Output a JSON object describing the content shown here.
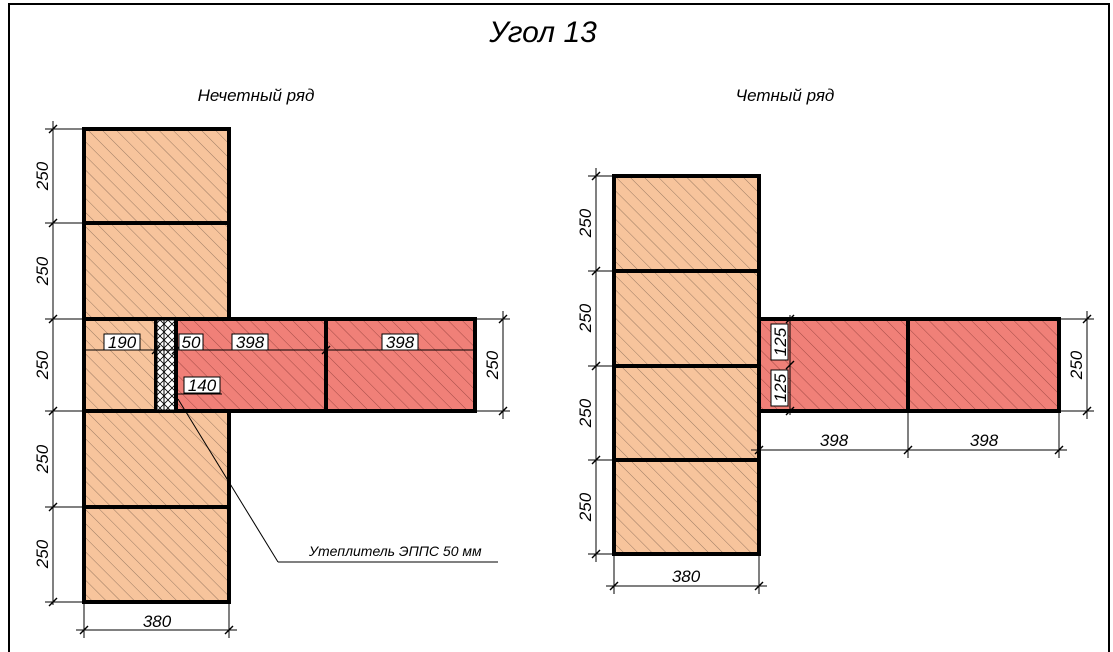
{
  "title": "Угол 13",
  "odd_row": {
    "label": "Нечетный ряд",
    "dims": {
      "h1": "250",
      "h2": "250",
      "h3": "250",
      "h4": "250",
      "h5": "250",
      "width": "380",
      "d190": "190",
      "d50": "50",
      "d398a": "398",
      "d398b": "398",
      "d140": "140",
      "right250": "250"
    },
    "insulation_note": "Утеплитель ЭППС 50 мм"
  },
  "even_row": {
    "label": "Четный ряд",
    "dims": {
      "h1": "250",
      "h2": "250",
      "h3": "250",
      "h4": "250",
      "width": "380",
      "d125a": "125",
      "d125b": "125",
      "d398a": "398",
      "d398b": "398",
      "right250": "250"
    }
  },
  "colors": {
    "wall_block": "#f7c49c",
    "partition_block": "#f08078",
    "outline": "#000000"
  }
}
